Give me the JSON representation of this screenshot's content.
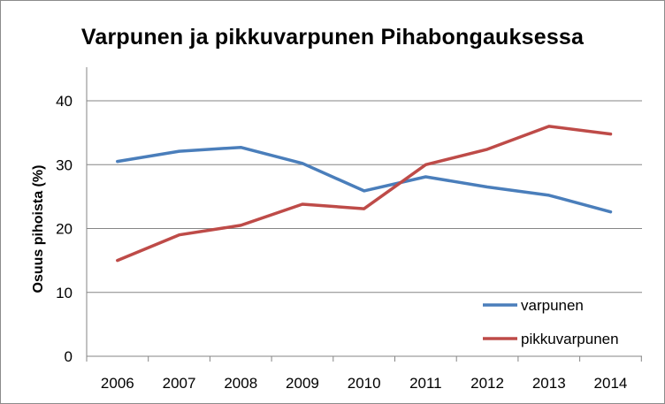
{
  "chart_data": {
    "type": "line",
    "title": "Varpunen ja pikkuvarpunen Pihabongauksessa",
    "xlabel": "",
    "ylabel": "Osuus pihoista (%)",
    "categories": [
      "2006",
      "2007",
      "2008",
      "2009",
      "2010",
      "2011",
      "2012",
      "2013",
      "2014"
    ],
    "ylim": [
      0,
      45
    ],
    "yticks": [
      0,
      10,
      20,
      30,
      40
    ],
    "grid": true,
    "legend_position": "bottom-right",
    "series": [
      {
        "name": "varpunen",
        "color": "#4a7ebb",
        "values": [
          30.5,
          32.1,
          32.7,
          30.2,
          25.9,
          28.1,
          26.5,
          25.2,
          22.6
        ]
      },
      {
        "name": "pikkuvarpunen",
        "color": "#be4b48",
        "values": [
          15.0,
          19.0,
          20.5,
          23.8,
          23.1,
          30.0,
          32.4,
          36.0,
          34.8
        ]
      }
    ]
  }
}
